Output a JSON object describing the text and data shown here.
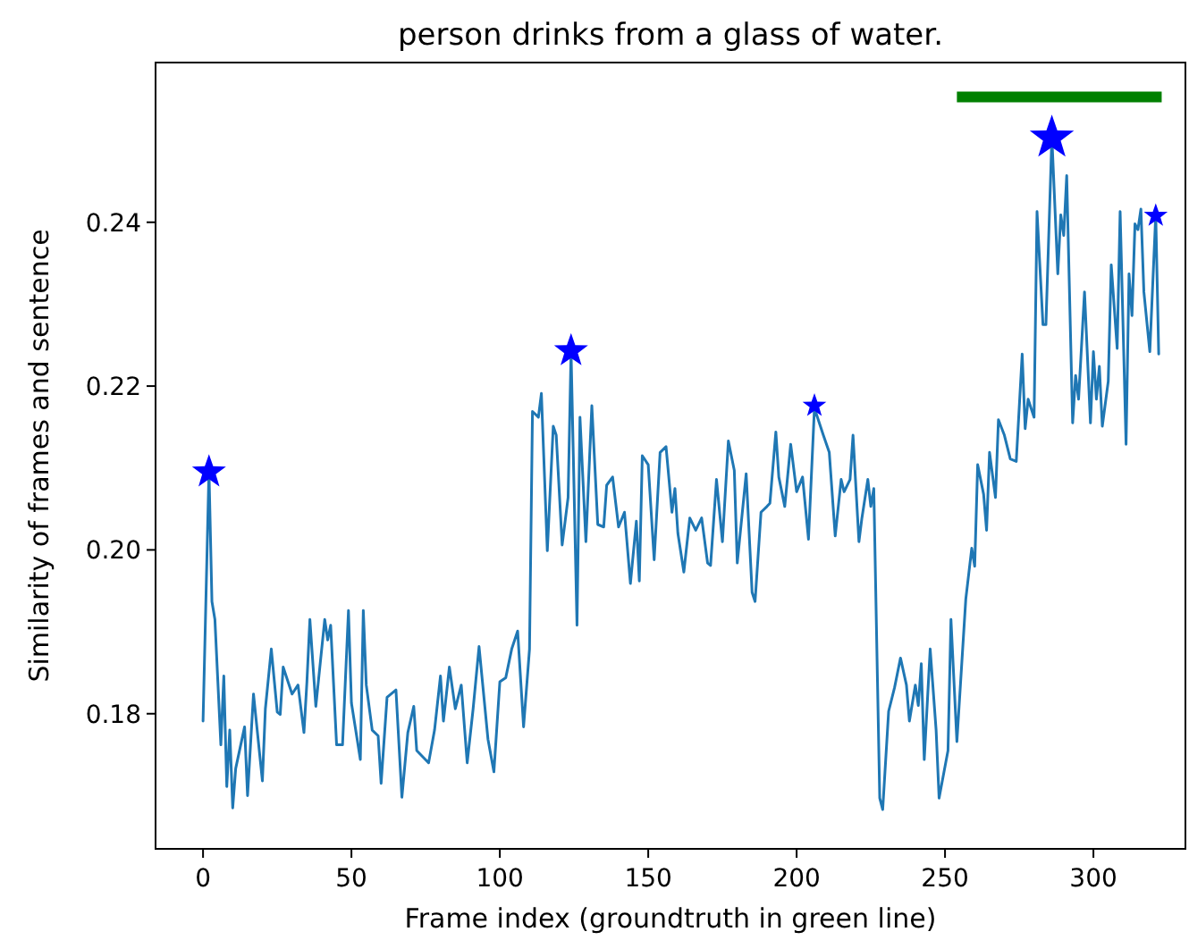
{
  "chart_data": {
    "type": "line",
    "title": "person drinks from a glass of water.",
    "xlabel": "Frame index (groundtruth in green line)",
    "ylabel": "Similarity of frames and sentence",
    "xlim": [
      -16,
      331
    ],
    "ylim": [
      0.1635,
      0.2595
    ],
    "xticks": [
      0,
      50,
      100,
      150,
      200,
      250,
      300
    ],
    "yticks": [
      {
        "value": 0.18,
        "label": "0.18"
      },
      {
        "value": 0.2,
        "label": "0.20"
      },
      {
        "value": 0.22,
        "label": "0.22"
      },
      {
        "value": 0.24,
        "label": "0.24"
      }
    ],
    "grid": false,
    "series": [
      {
        "color": "#1f77b4",
        "x": [
          0,
          2,
          3,
          4,
          6,
          7,
          8,
          9,
          10,
          11,
          14,
          15,
          17,
          20,
          21,
          23,
          25,
          26,
          27,
          30,
          32,
          34,
          35,
          36,
          38,
          41,
          42,
          43,
          45,
          47,
          49,
          50,
          53,
          54,
          55,
          57,
          59,
          60,
          62,
          65,
          67,
          69,
          71,
          72,
          76,
          78,
          80,
          81,
          83,
          85,
          87,
          89,
          91,
          93,
          96,
          98,
          100,
          102,
          104,
          106,
          108,
          110,
          111,
          113,
          114,
          116,
          118,
          119,
          121,
          123,
          124,
          126,
          127,
          129,
          131,
          133,
          135,
          136,
          138,
          140,
          142,
          144,
          146,
          147,
          148,
          150,
          152,
          154,
          156,
          158,
          159,
          160,
          162,
          164,
          166,
          168,
          170,
          171,
          173,
          175,
          177,
          179,
          180,
          183,
          185,
          186,
          188,
          190,
          191,
          193,
          194,
          196,
          198,
          200,
          202,
          204,
          206,
          209,
          211,
          213,
          215,
          216,
          218,
          219,
          221,
          222,
          224,
          225,
          226,
          228,
          229,
          231,
          233,
          235,
          237,
          238,
          240,
          241,
          242,
          243,
          245,
          247,
          248,
          251,
          252,
          254,
          257,
          259,
          260,
          261,
          263,
          264,
          265,
          267,
          268,
          270,
          272,
          274,
          276,
          277,
          278,
          280,
          281,
          283,
          284,
          286,
          288,
          289,
          290,
          291,
          293,
          294,
          295,
          297,
          299,
          300,
          301,
          302,
          303,
          305,
          306,
          308,
          309,
          311,
          312,
          313,
          314,
          315,
          316,
          317,
          319,
          321,
          322
        ],
        "values": [
          0.1791,
          0.2097,
          0.1937,
          0.1915,
          0.1762,
          0.1846,
          0.1711,
          0.178,
          0.1685,
          0.1733,
          0.1784,
          0.17,
          0.1824,
          0.1718,
          0.1806,
          0.1879,
          0.1802,
          0.1799,
          0.1857,
          0.1824,
          0.1835,
          0.1777,
          0.1839,
          0.1915,
          0.1809,
          0.1915,
          0.189,
          0.1908,
          0.1762,
          0.1762,
          0.1926,
          0.1813,
          0.1744,
          0.1926,
          0.1835,
          0.178,
          0.1773,
          0.1715,
          0.182,
          0.1829,
          0.1698,
          0.1777,
          0.1809,
          0.1755,
          0.174,
          0.178,
          0.1846,
          0.1791,
          0.1857,
          0.1806,
          0.1835,
          0.174,
          0.1806,
          0.1882,
          0.1769,
          0.1729,
          0.1839,
          0.1844,
          0.1879,
          0.1901,
          0.1784,
          0.1879,
          0.2169,
          0.2162,
          0.2191,
          0.1999,
          0.2151,
          0.214,
          0.2006,
          0.2064,
          0.2242,
          0.1908,
          0.2162,
          0.201,
          0.2176,
          0.2031,
          0.2028,
          0.2079,
          0.2089,
          0.2028,
          0.2046,
          0.1959,
          0.2035,
          0.1962,
          0.2115,
          0.2104,
          0.1988,
          0.2119,
          0.2126,
          0.2046,
          0.2075,
          0.202,
          0.1973,
          0.2039,
          0.2024,
          0.2039,
          0.1984,
          0.1981,
          0.2086,
          0.201,
          0.2133,
          0.2097,
          0.1984,
          0.2093,
          0.1948,
          0.1937,
          0.2046,
          0.2053,
          0.2057,
          0.2144,
          0.2089,
          0.2053,
          0.2129,
          0.2071,
          0.2089,
          0.2013,
          0.2173,
          0.214,
          0.2119,
          0.2017,
          0.2086,
          0.2071,
          0.2086,
          0.214,
          0.201,
          0.2039,
          0.2086,
          0.2053,
          0.2075,
          0.1697,
          0.1683,
          0.1803,
          0.1832,
          0.1868,
          0.1835,
          0.1791,
          0.1835,
          0.181,
          0.1861,
          0.1744,
          0.1879,
          0.178,
          0.1697,
          0.1755,
          0.1915,
          0.1766,
          0.194,
          0.2002,
          0.198,
          0.2104,
          0.2068,
          0.2024,
          0.2119,
          0.2064,
          0.2159,
          0.214,
          0.2111,
          0.2108,
          0.2239,
          0.2148,
          0.2184,
          0.2162,
          0.2413,
          0.2275,
          0.2275,
          0.2504,
          0.2337,
          0.2409,
          0.2384,
          0.2457,
          0.2155,
          0.2213,
          0.2184,
          0.2315,
          0.2155,
          0.2242,
          0.2184,
          0.2224,
          0.2151,
          0.2206,
          0.2348,
          0.2246,
          0.2413,
          0.2129,
          0.2337,
          0.2286,
          0.2398,
          0.2391,
          0.2416,
          0.2315,
          0.2242,
          0.2409,
          0.2239
        ]
      },
      {
        "type": "scatter",
        "color": "#0000ff",
        "marker": "star",
        "x": [
          2,
          124,
          206,
          286,
          321
        ],
        "values": [
          0.2095,
          0.2243,
          0.2176,
          0.2503,
          0.2408
        ],
        "sizes": [
          0.59,
          0.59,
          0.29,
          1,
          0.29
        ]
      },
      {
        "type": "line",
        "color": "#008000",
        "x": [
          254,
          323
        ],
        "values": [
          0.2553,
          0.2553
        ]
      }
    ]
  }
}
